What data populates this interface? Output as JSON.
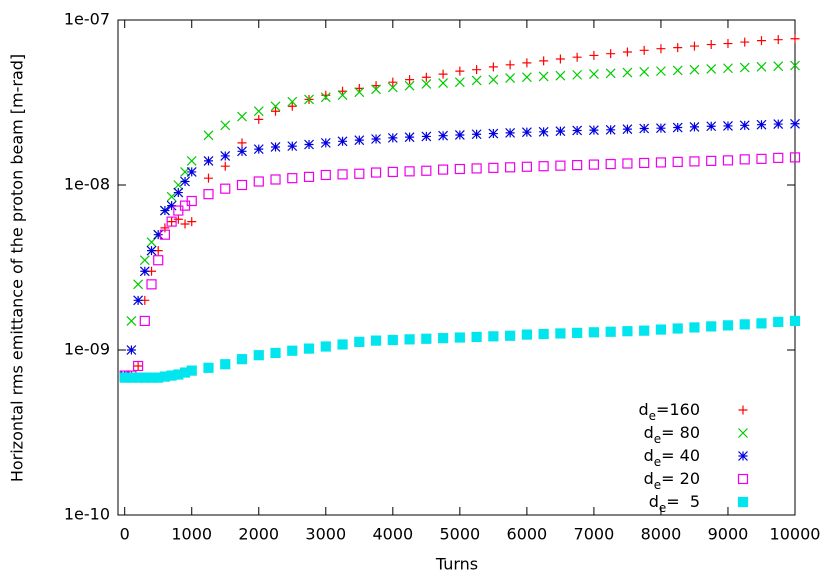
{
  "chart_data": {
    "type": "scatter",
    "xlabel": "Turns",
    "ylabel": "Horizontal rms emittance of the proton beam [m-rad]",
    "log_y": true,
    "legend": "lower right",
    "xlim": [
      -100,
      10000
    ],
    "ylim": [
      1e-10,
      1e-07
    ],
    "xticks": [
      0,
      1000,
      2000,
      3000,
      4000,
      5000,
      6000,
      7000,
      8000,
      9000,
      10000
    ],
    "yticks": [
      {
        "value": 1e-10,
        "label": "1e-10"
      },
      {
        "value": 1e-09,
        "label": "1e-09"
      },
      {
        "value": 1e-08,
        "label": "1e-08"
      },
      {
        "value": 1e-07,
        "label": "1e-07"
      }
    ],
    "x": [
      0,
      100,
      200,
      300,
      400,
      500,
      600,
      700,
      800,
      900,
      1000,
      1250,
      1500,
      1750,
      2000,
      2250,
      2500,
      2750,
      3000,
      3250,
      3500,
      3750,
      4000,
      4250,
      4500,
      4750,
      5000,
      5250,
      5500,
      5750,
      6000,
      6250,
      6500,
      6750,
      7000,
      7250,
      7500,
      7750,
      8000,
      8250,
      8500,
      8750,
      9000,
      9250,
      9500,
      9750,
      10000
    ],
    "series": [
      {
        "name": "de=160",
        "color": "#ff0000",
        "marker": "plus",
        "values": [
          7e-10,
          7e-10,
          8e-10,
          2e-09,
          3e-09,
          4e-09,
          5.5e-09,
          6e-09,
          6.2e-09,
          5.8e-09,
          6e-09,
          1.1e-08,
          1.3e-08,
          1.8e-08,
          2.5e-08,
          2.8e-08,
          3e-08,
          3.3e-08,
          3.5e-08,
          3.7e-08,
          3.85e-08,
          4e-08,
          4.2e-08,
          4.35e-08,
          4.5e-08,
          4.7e-08,
          4.9e-08,
          5e-08,
          5.2e-08,
          5.35e-08,
          5.5e-08,
          5.65e-08,
          5.8e-08,
          5.95e-08,
          6.1e-08,
          6.25e-08,
          6.4e-08,
          6.55e-08,
          6.7e-08,
          6.8e-08,
          6.95e-08,
          7.1e-08,
          7.2e-08,
          7.35e-08,
          7.5e-08,
          7.6e-08,
          7.7e-08
        ]
      },
      {
        "name": "de= 80",
        "color": "#00cc00",
        "marker": "cross",
        "values": [
          7e-10,
          1.5e-09,
          2.5e-09,
          3.5e-09,
          4.5e-09,
          5e-09,
          7e-09,
          8.5e-09,
          1e-08,
          1.2e-08,
          1.4e-08,
          2e-08,
          2.3e-08,
          2.6e-08,
          2.8e-08,
          3e-08,
          3.2e-08,
          3.3e-08,
          3.4e-08,
          3.5e-08,
          3.65e-08,
          3.8e-08,
          3.9e-08,
          4e-08,
          4.1e-08,
          4.15e-08,
          4.2e-08,
          4.3e-08,
          4.35e-08,
          4.45e-08,
          4.5e-08,
          4.55e-08,
          4.6e-08,
          4.65e-08,
          4.7e-08,
          4.75e-08,
          4.8e-08,
          4.85e-08,
          4.9e-08,
          4.95e-08,
          5e-08,
          5.05e-08,
          5.1e-08,
          5.15e-08,
          5.2e-08,
          5.25e-08,
          5.3e-08
        ]
      },
      {
        "name": "de= 40",
        "color": "#0000dd",
        "marker": "star",
        "values": [
          7e-10,
          1e-09,
          2e-09,
          3e-09,
          4e-09,
          5e-09,
          7e-09,
          7.5e-09,
          9e-09,
          1.05e-08,
          1.2e-08,
          1.4e-08,
          1.5e-08,
          1.6e-08,
          1.65e-08,
          1.7e-08,
          1.72e-08,
          1.76e-08,
          1.8e-08,
          1.84e-08,
          1.87e-08,
          1.9e-08,
          1.93e-08,
          1.95e-08,
          1.97e-08,
          1.99e-08,
          2.01e-08,
          2.03e-08,
          2.05e-08,
          2.07e-08,
          2.09e-08,
          2.1e-08,
          2.12e-08,
          2.14e-08,
          2.15e-08,
          2.16e-08,
          2.18e-08,
          2.2e-08,
          2.21e-08,
          2.23e-08,
          2.25e-08,
          2.27e-08,
          2.28e-08,
          2.3e-08,
          2.32e-08,
          2.34e-08,
          2.35e-08
        ]
      },
      {
        "name": "de= 20",
        "color": "#ee00ee",
        "marker": "square",
        "values": [
          7e-10,
          7e-10,
          8e-10,
          1.5e-09,
          2.5e-09,
          3.5e-09,
          5e-09,
          6e-09,
          7e-09,
          7.5e-09,
          8e-09,
          8.8e-09,
          9.5e-09,
          1e-08,
          1.05e-08,
          1.08e-08,
          1.1e-08,
          1.12e-08,
          1.15e-08,
          1.16e-08,
          1.17e-08,
          1.19e-08,
          1.2e-08,
          1.21e-08,
          1.22e-08,
          1.24e-08,
          1.25e-08,
          1.26e-08,
          1.27e-08,
          1.28e-08,
          1.29e-08,
          1.3e-08,
          1.31e-08,
          1.32e-08,
          1.33e-08,
          1.34e-08,
          1.35e-08,
          1.36e-08,
          1.37e-08,
          1.38e-08,
          1.39e-08,
          1.4e-08,
          1.41e-08,
          1.43e-08,
          1.44e-08,
          1.46e-08,
          1.47e-08
        ]
      },
      {
        "name": "de=  5",
        "color": "#00e5ee",
        "marker": "filled-square",
        "values": [
          6.8e-10,
          6.8e-10,
          6.8e-10,
          6.8e-10,
          6.8e-10,
          6.8e-10,
          6.9e-10,
          7e-10,
          7.1e-10,
          7.3e-10,
          7.5e-10,
          7.8e-10,
          8.2e-10,
          8.8e-10,
          9.3e-10,
          9.6e-10,
          9.9e-10,
          1.02e-09,
          1.05e-09,
          1.08e-09,
          1.12e-09,
          1.14e-09,
          1.15e-09,
          1.16e-09,
          1.17e-09,
          1.18e-09,
          1.19e-09,
          1.2e-09,
          1.21e-09,
          1.22e-09,
          1.24e-09,
          1.25e-09,
          1.26e-09,
          1.27e-09,
          1.28e-09,
          1.29e-09,
          1.3e-09,
          1.31e-09,
          1.33e-09,
          1.35e-09,
          1.37e-09,
          1.39e-09,
          1.41e-09,
          1.43e-09,
          1.45e-09,
          1.48e-09,
          1.5e-09
        ]
      }
    ]
  }
}
